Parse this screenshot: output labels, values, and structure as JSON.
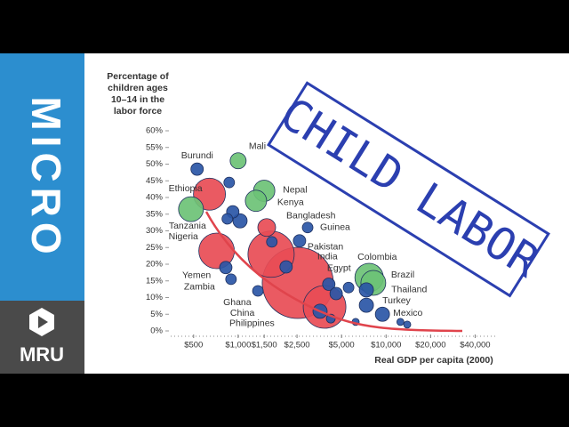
{
  "sidebar": {
    "label": "MICRO",
    "logo": "MRU"
  },
  "overlay_title": "CHILD LABOR",
  "chart_data": {
    "type": "bubble",
    "ylabel": [
      "Percentage of",
      "children ages",
      "10–14 in the",
      "labor force"
    ],
    "xlabel": "Real GDP per capita (2000)",
    "xscale": "log",
    "xlim": [
      350,
      57000
    ],
    "xticks": [
      {
        "value": 500,
        "label": "$500"
      },
      {
        "value": 1000,
        "label": "$1,000"
      },
      {
        "value": 1500,
        "label": "$1,500"
      },
      {
        "value": 2500,
        "label": "$2,500"
      },
      {
        "value": 5000,
        "label": "$5,000"
      },
      {
        "value": 10000,
        "label": "$10,000"
      },
      {
        "value": 20000,
        "label": "$20,000"
      },
      {
        "value": 40000,
        "label": "$40,000"
      }
    ],
    "ylim": [
      0,
      60
    ],
    "yticks": [
      {
        "value": 0,
        "label": "0%"
      },
      {
        "value": 5,
        "label": "5%"
      },
      {
        "value": 10,
        "label": "10%"
      },
      {
        "value": 15,
        "label": "15%"
      },
      {
        "value": 20,
        "label": "20%"
      },
      {
        "value": 25,
        "label": "25%"
      },
      {
        "value": 30,
        "label": "30%"
      },
      {
        "value": 35,
        "label": "35%"
      },
      {
        "value": 40,
        "label": "40%"
      },
      {
        "value": 45,
        "label": "45%"
      },
      {
        "value": 50,
        "label": "50%"
      },
      {
        "value": 55,
        "label": "55%"
      },
      {
        "value": 60,
        "label": "60%"
      }
    ],
    "labels": [
      "Burundi",
      "Mali",
      "Ethiopia",
      "Nepal",
      "Kenya",
      "Tanzania",
      "Bangladesh",
      "Guinea",
      "Nigeria",
      "Pakistan",
      "India",
      "Yemen",
      "Zambia",
      "Colombia",
      "Brazil",
      "Egypt",
      "Thailand",
      "Turkey",
      "Mexico",
      "Ghana",
      "China",
      "Philippines",
      null,
      null,
      null,
      null,
      null,
      null,
      null,
      null,
      null,
      null,
      null,
      null,
      null
    ],
    "x": [
      528,
      1000,
      640,
      1500,
      1320,
      480,
      1560,
      2950,
      715,
      2600,
      1670,
      825,
      895,
      7680,
      8200,
      4100,
      7360,
      7360,
      9450,
      1360,
      2530,
      3580,
      870,
      920,
      1030,
      845,
      1690,
      2110,
      4600,
      5580,
      4230,
      6230,
      12500,
      13900,
      3840
    ],
    "values": [
      48.5,
      51,
      41,
      42,
      39,
      36.5,
      31,
      31,
      24,
      27,
      23,
      19,
      15.5,
      16,
      14.4,
      14,
      12.3,
      7.7,
      5,
      12,
      14.4,
      5.9,
      44.5,
      35.7,
      33,
      33.6,
      26.7,
      19.2,
      11.2,
      13,
      3.7,
      2.7,
      2.7,
      1.9,
      7.2
    ],
    "sizes": [
      7,
      9,
      18,
      12,
      12,
      14,
      10,
      6,
      20,
      7,
      26,
      7,
      6,
      16,
      14,
      7,
      8,
      8,
      8,
      6,
      40,
      8,
      6,
      7,
      8,
      6,
      6,
      7,
      7,
      6,
      5,
      4,
      4,
      4,
      24
    ],
    "colors": [
      "#2a56a6",
      "#6cc276",
      "#e84c55",
      "#6cc276",
      "#6cc276",
      "#6cc276",
      "#e84c55",
      "#2a56a6",
      "#e84c55",
      "#2a56a6",
      "#e84c55",
      "#2a56a6",
      "#2a56a6",
      "#6cc276",
      "#6cc276",
      "#2a56a6",
      "#2a56a6",
      "#2a56a6",
      "#2a56a6",
      "#2a56a6",
      "#e84c55",
      "#2a56a6",
      "#2a56a6",
      "#2a56a6",
      "#2a56a6",
      "#2a56a6",
      "#2a56a6",
      "#2a56a6",
      "#2a56a6",
      "#2a56a6",
      "#2a56a6",
      "#2a56a6",
      "#2a56a6",
      "#2a56a6",
      "#e84c55"
    ]
  }
}
